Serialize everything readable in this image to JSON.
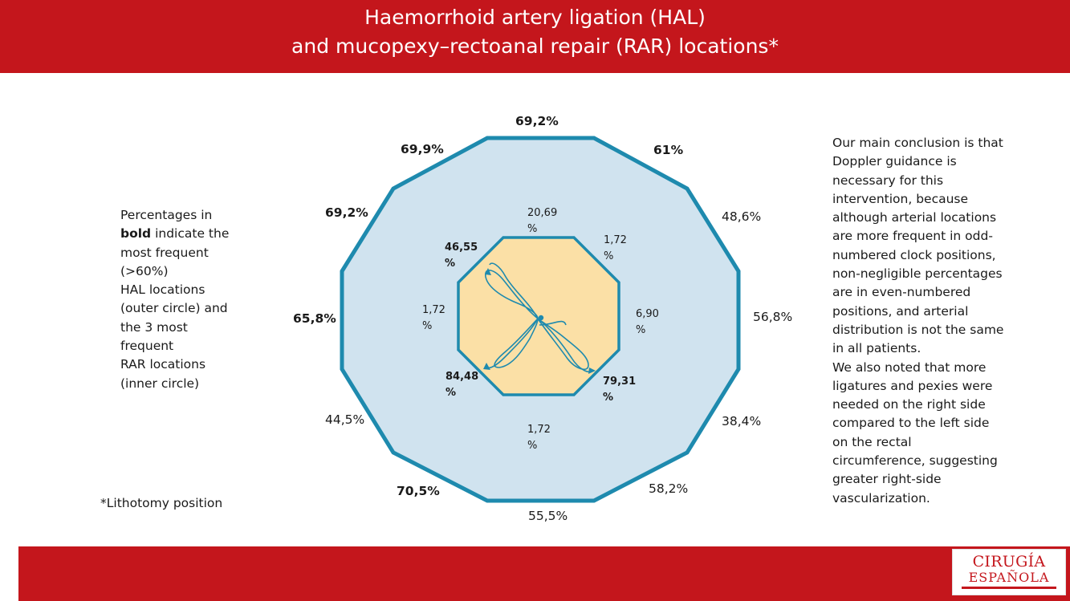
{
  "header": {
    "title_line1": "Haemorrhoid artery ligation (HAL)",
    "title_line2": "and mucopexy–rectoanal repair (RAR) locations*"
  },
  "legend": {
    "line1": "Percentages in",
    "bold_word": "bold",
    "line2_rest": " indicate the",
    "line3": "most frequent",
    "line4": "(>60%)",
    "line5": "HAL locations",
    "line6": "(outer circle) and",
    "line7": "the 3 most",
    "line8": "frequent",
    "line9": "RAR locations",
    "line10": "(inner circle)"
  },
  "footnote": "*Lithotomy position",
  "conclusion": {
    "lines": [
      "Our main conclusion is that",
      "Doppler guidance is",
      "necessary for this",
      "intervention, because",
      "although arterial locations",
      "are more frequent in odd-",
      "numbered clock positions,",
      "non-negligible percentages",
      "are in even-numbered",
      "positions, and arterial",
      "distribution is not the same",
      "in all patients.",
      "We also noted that more",
      "ligatures and pexies were",
      "needed on the right side",
      "compared to the left side",
      "on the rectal",
      "circumference, suggesting",
      "greater right-side",
      "vascularization."
    ]
  },
  "outer_labels": {
    "p12": "69,2%",
    "p1": "61%",
    "p2": "48,6%",
    "p3": "56,8%",
    "p4": "38,4%",
    "p5": "58,2%",
    "p6": "55,5%",
    "p7": "70,5%",
    "p8": "44,5%",
    "p9": "65,8%",
    "p10": "69,2%",
    "p11": "69,9%"
  },
  "inner_labels": {
    "top": [
      "20,69",
      "%"
    ],
    "top_right": [
      "1,72",
      "%"
    ],
    "right": [
      "6,90",
      "%"
    ],
    "bottom_right": [
      "79,31",
      "%"
    ],
    "bottom": [
      "1,72",
      "%"
    ],
    "bottom_left": [
      "84,48",
      "%"
    ],
    "left": [
      "1,72",
      "%"
    ],
    "top_left": [
      "46,55",
      "%"
    ]
  },
  "logo": {
    "line1": "CIRUGÍA",
    "line2": "ESPAÑOLA"
  },
  "colors": {
    "brand_red": "#c4161c",
    "outer_fill": "#d0e3ef",
    "outline_blue": "#1e8aae",
    "inner_fill": "#fbe0a6",
    "artery_blue": "#1e8aae"
  }
}
